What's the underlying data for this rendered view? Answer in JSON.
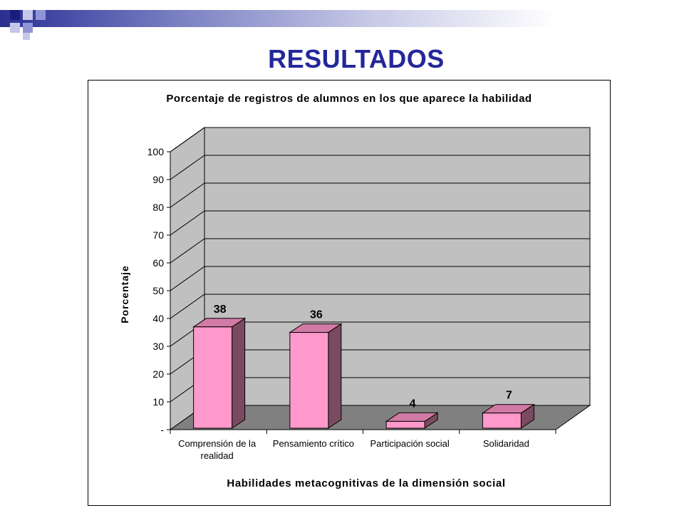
{
  "slide": {
    "title": "RESULTADOS",
    "title_color": "#24289a",
    "accent_colors": [
      "#1a1e7a",
      "#8f94d6",
      "#c4c7e8"
    ]
  },
  "chart_data": {
    "type": "bar",
    "title": "Porcentaje de registros de alumnos en los que aparece la habilidad",
    "xlabel": "Habilidades  metacognitivas de la dimensión social",
    "ylabel": "Porcentaje",
    "categories": [
      "Comprensión de la realidad",
      "Pensamiento crítico",
      "Participación social",
      "Solidaridad"
    ],
    "values": [
      38,
      36,
      4,
      7
    ],
    "data_labels": [
      "38",
      "36",
      "4",
      "7"
    ],
    "ylim": [
      0,
      100
    ],
    "yticks": [
      0,
      10,
      20,
      30,
      40,
      50,
      60,
      70,
      80,
      90,
      100
    ],
    "ytick_labels": [
      "-",
      "10",
      "20",
      "30",
      "40",
      "50",
      "60",
      "70",
      "80",
      "90",
      "100"
    ],
    "grid": true,
    "three_d": true,
    "legend": "none",
    "colors": {
      "bar_front": "#ff99cc",
      "bar_side": "#7a4a60",
      "bar_top": "#d27aa6",
      "back_wall": "#c0c0c0",
      "side_wall": "#c0c0c0",
      "floor": "#808080"
    }
  }
}
